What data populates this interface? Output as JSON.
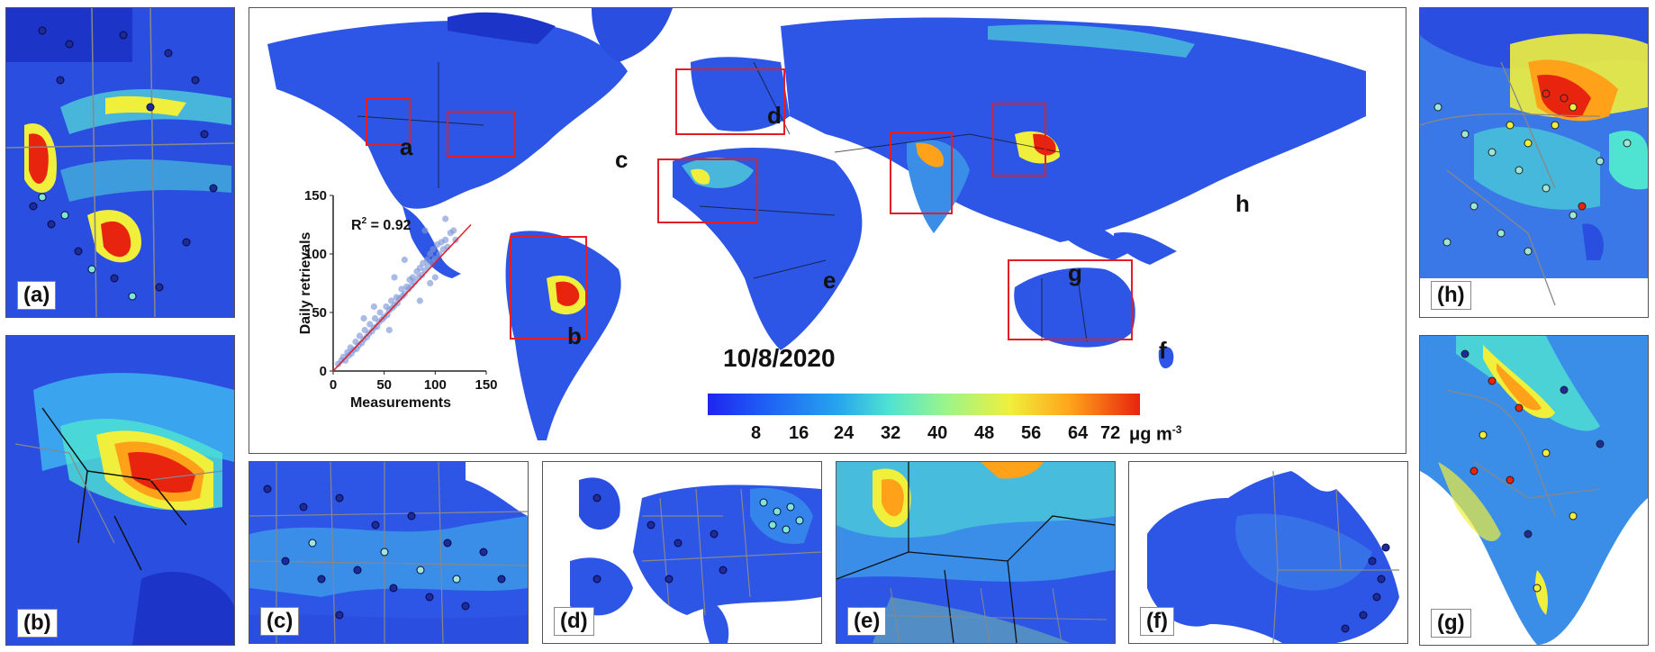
{
  "panels": {
    "a": "(a)",
    "b": "(b)",
    "c": "(c)",
    "d": "(d)",
    "e": "(e)",
    "f": "(f)",
    "g": "(g)",
    "h": "(h)"
  },
  "region_labels": [
    "a",
    "b",
    "c",
    "d",
    "e",
    "f",
    "g",
    "h"
  ],
  "date_label": "10/8/2020",
  "colorbar": {
    "ticks": [
      "8",
      "16",
      "24",
      "32",
      "40",
      "48",
      "56",
      "64",
      "72"
    ],
    "unit": "μg m",
    "unit_exp": "-3",
    "colors": [
      "#1f25f0",
      "#1f62f5",
      "#26a4ee",
      "#4fe3d2",
      "#9af58a",
      "#f0ef3c",
      "#ffa21a",
      "#e8230e"
    ]
  },
  "chart_data": {
    "type": "scatter",
    "xlabel": "Measurements",
    "ylabel": "Daily retrievals",
    "annotation": "R",
    "annotation_exp": "2",
    "annotation_value": " = 0.92",
    "xlim": [
      0,
      150
    ],
    "ylim": [
      0,
      150
    ],
    "xticks": [
      "0",
      "50",
      "100",
      "150"
    ],
    "yticks": [
      "0",
      "50",
      "100",
      "150"
    ],
    "fit_line": [
      [
        0,
        0
      ],
      [
        135,
        125
      ]
    ],
    "points": [
      [
        5,
        6
      ],
      [
        8,
        9
      ],
      [
        10,
        12
      ],
      [
        12,
        9
      ],
      [
        14,
        16
      ],
      [
        15,
        13
      ],
      [
        17,
        20
      ],
      [
        18,
        15
      ],
      [
        20,
        18
      ],
      [
        22,
        25
      ],
      [
        23,
        19
      ],
      [
        25,
        22
      ],
      [
        26,
        30
      ],
      [
        28,
        24
      ],
      [
        30,
        27
      ],
      [
        31,
        35
      ],
      [
        33,
        29
      ],
      [
        35,
        32
      ],
      [
        36,
        40
      ],
      [
        38,
        34
      ],
      [
        40,
        37
      ],
      [
        41,
        45
      ],
      [
        43,
        38
      ],
      [
        45,
        42
      ],
      [
        46,
        50
      ],
      [
        48,
        44
      ],
      [
        50,
        46
      ],
      [
        52,
        55
      ],
      [
        53,
        48
      ],
      [
        55,
        52
      ],
      [
        57,
        60
      ],
      [
        58,
        54
      ],
      [
        60,
        56
      ],
      [
        62,
        63
      ],
      [
        63,
        58
      ],
      [
        65,
        62
      ],
      [
        67,
        70
      ],
      [
        68,
        64
      ],
      [
        70,
        66
      ],
      [
        72,
        72
      ],
      [
        74,
        70
      ],
      [
        75,
        78
      ],
      [
        77,
        73
      ],
      [
        78,
        80
      ],
      [
        80,
        76
      ],
      [
        82,
        85
      ],
      [
        84,
        80
      ],
      [
        85,
        88
      ],
      [
        87,
        82
      ],
      [
        88,
        92
      ],
      [
        90,
        86
      ],
      [
        92,
        95
      ],
      [
        93,
        90
      ],
      [
        95,
        100
      ],
      [
        97,
        93
      ],
      [
        98,
        104
      ],
      [
        100,
        96
      ],
      [
        102,
        108
      ],
      [
        104,
        100
      ],
      [
        106,
        110
      ],
      [
        108,
        104
      ],
      [
        110,
        112
      ],
      [
        112,
        106
      ],
      [
        115,
        118
      ],
      [
        118,
        120
      ],
      [
        120,
        112
      ],
      [
        85,
        60
      ],
      [
        70,
        95
      ],
      [
        60,
        80
      ],
      [
        95,
        75
      ],
      [
        40,
        55
      ],
      [
        55,
        35
      ],
      [
        30,
        45
      ],
      [
        90,
        120
      ],
      [
        100,
        80
      ],
      [
        110,
        130
      ]
    ]
  }
}
